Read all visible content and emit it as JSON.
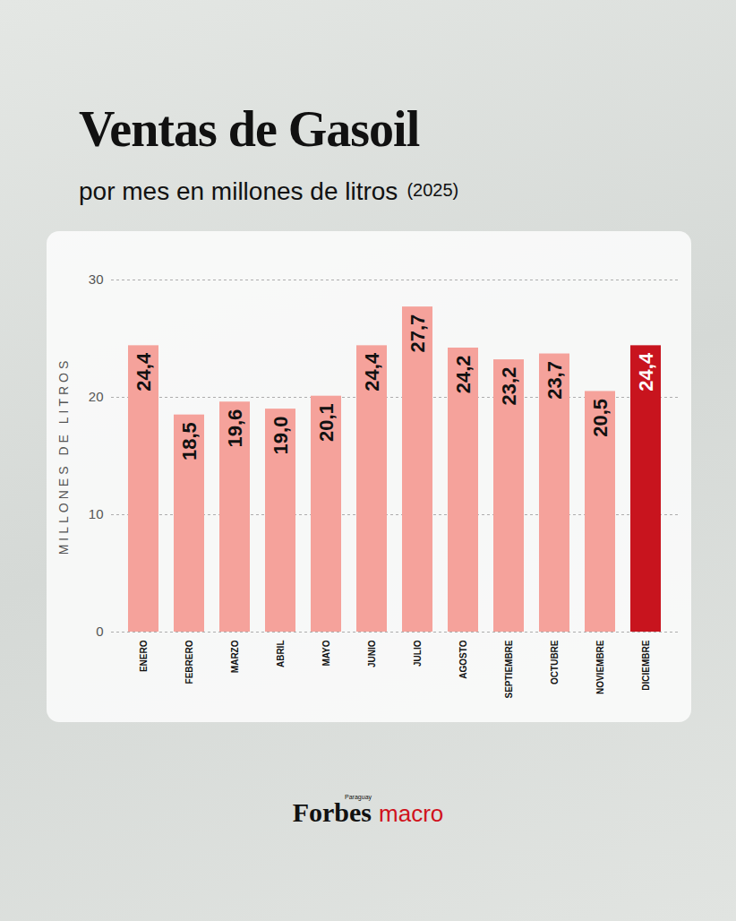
{
  "chart_data": {
    "type": "bar",
    "title": "Ventas de Gasoil",
    "subtitle": "por mes en millones de litros",
    "annotations": [
      "(2025)",
      "Forbes",
      "Paraguay",
      "macro"
    ],
    "y_label": "MILLONES DE LITROS",
    "categories": [
      "ENERO",
      "FEBRERO",
      "MARZO",
      "ABRIL",
      "MAYO",
      "JUNIO",
      "JULIO",
      "AGOSTO",
      "SEPTIEMBRE",
      "OCTUBRE",
      "NOVIEMBRE",
      "DICIEMBRE"
    ],
    "values": [
      24.4,
      18.5,
      19.6,
      19.0,
      20.1,
      24.4,
      27.7,
      24.2,
      23.2,
      23.7,
      20.5,
      24.4
    ],
    "value_labels": [
      "24,4",
      "18,5",
      "19,6",
      "19,0",
      "20,1",
      "24,4",
      "27,7",
      "24,2",
      "23,2",
      "23,7",
      "20,5",
      "24,4"
    ],
    "colors": [
      "#f5a29b",
      "#f5a29b",
      "#f5a29b",
      "#f5a29b",
      "#f5a29b",
      "#f5a29b",
      "#f5a29b",
      "#f5a29b",
      "#f5a29b",
      "#f5a29b",
      "#f5a29b",
      "#c8141e"
    ],
    "ylim": [
      0,
      30
    ],
    "yticks": [
      0,
      10,
      20,
      30
    ],
    "grid": true,
    "data_labels": true
  }
}
